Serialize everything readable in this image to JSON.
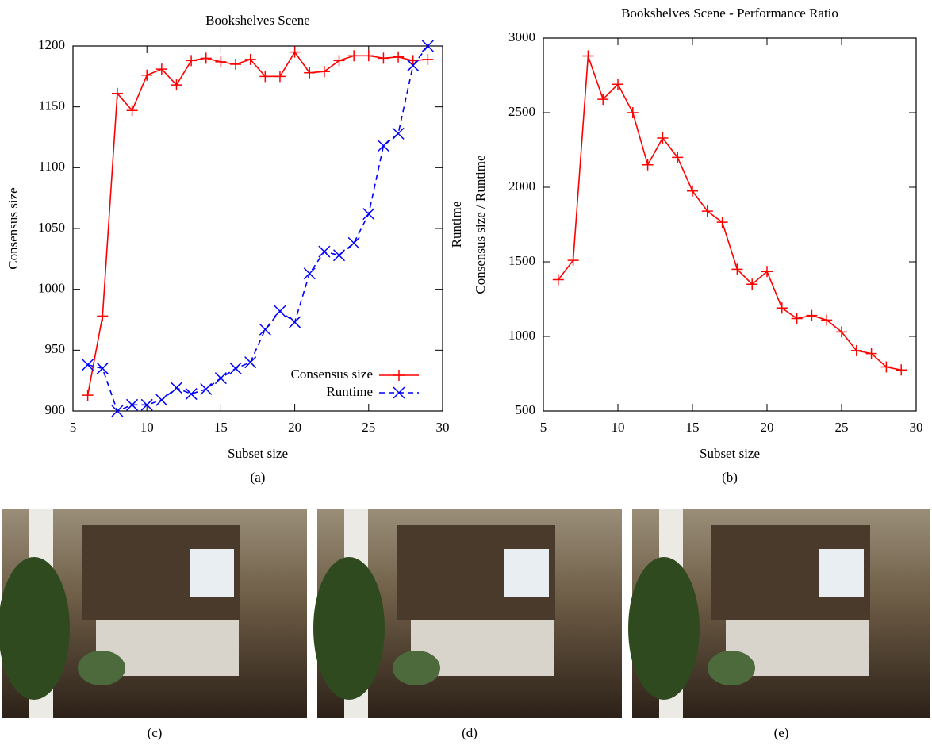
{
  "chart_data": [
    {
      "type": "line",
      "title": "Bookshelves Scene",
      "xlabel": "Subset size",
      "ylabel": "Consensus size",
      "caption": "(a)",
      "x": [
        6,
        7,
        8,
        9,
        10,
        11,
        12,
        13,
        14,
        15,
        16,
        17,
        18,
        19,
        20,
        21,
        22,
        23,
        24,
        25,
        26,
        27,
        28,
        29
      ],
      "series": [
        {
          "name": "Consensus size",
          "color": "#ff0000",
          "marker": "plus",
          "dash": false,
          "values": [
            913,
            978,
            1161,
            1147,
            1176,
            1181,
            1168,
            1188,
            1190,
            1187,
            1185,
            1189,
            1175,
            1175,
            1195,
            1178,
            1179,
            1188,
            1192,
            1192,
            1190,
            1191,
            1188,
            1189
          ]
        },
        {
          "name": "Runtime",
          "color": "#0000ff",
          "marker": "cross",
          "dash": true,
          "values": [
            938,
            935,
            900,
            905,
            905,
            909,
            919,
            914,
            918,
            927,
            935,
            940,
            967,
            982,
            973,
            1013,
            1031,
            1028,
            1038,
            1062,
            1118,
            1128,
            1184,
            1200
          ]
        }
      ],
      "xlim": [
        5,
        30
      ],
      "xticks": [
        5,
        10,
        15,
        20,
        25,
        30
      ],
      "ylim": [
        900,
        1200
      ],
      "yticks": [
        900,
        950,
        1000,
        1050,
        1100,
        1150,
        1200
      ],
      "legend": "bottom-right"
    },
    {
      "type": "line",
      "title": "Bookshelves Scene - Performance Ratio",
      "xlabel": "Subset size",
      "ylabel": [
        "Runtime",
        "Consensus size / Runtime"
      ],
      "caption": "(b)",
      "x": [
        6,
        7,
        8,
        9,
        10,
        11,
        12,
        13,
        14,
        15,
        16,
        17,
        18,
        19,
        20,
        21,
        22,
        23,
        24,
        25,
        26,
        27,
        28,
        29
      ],
      "series": [
        {
          "color": "#ff0000",
          "marker": "plus",
          "dash": false,
          "values": [
            1380,
            1510,
            2880,
            2590,
            2690,
            2500,
            2150,
            2330,
            2200,
            1975,
            1840,
            1765,
            1450,
            1350,
            1435,
            1190,
            1120,
            1140,
            1110,
            1030,
            905,
            885,
            795,
            775
          ]
        }
      ],
      "xlim": [
        5,
        30
      ],
      "xticks": [
        5,
        10,
        15,
        20,
        25,
        30
      ],
      "ylim": [
        500,
        3000
      ],
      "yticks": [
        500,
        1000,
        1500,
        2000,
        2500,
        3000
      ]
    }
  ],
  "photos": [
    {
      "caption": "(c)"
    },
    {
      "caption": "(d)"
    },
    {
      "caption": "(e)"
    }
  ]
}
